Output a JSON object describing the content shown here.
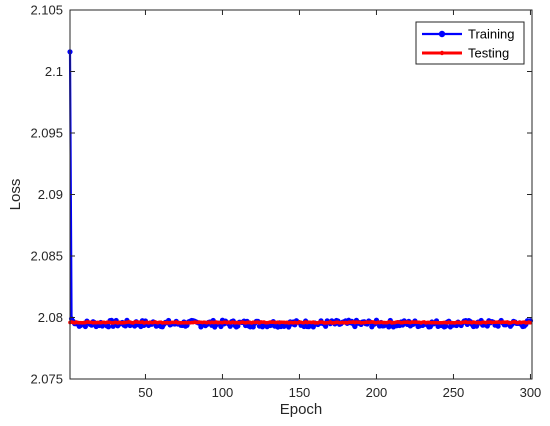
{
  "chart_data": {
    "type": "line",
    "title": "",
    "xlabel": "Epoch",
    "ylabel": "Loss",
    "xlim": [
      1,
      301
    ],
    "ylim": [
      2.075,
      2.105
    ],
    "xticks": [
      50,
      100,
      150,
      200,
      250,
      300
    ],
    "xtick_labels": [
      "50",
      "100",
      "150",
      "200",
      "250",
      "300"
    ],
    "yticks": [
      2.075,
      2.08,
      2.085,
      2.09,
      2.095,
      2.1,
      2.105
    ],
    "ytick_labels": [
      "2.075",
      "2.08",
      "2.085",
      "2.09",
      "2.095",
      "2.1",
      "2.105"
    ],
    "grid": false,
    "legend_position": "top-right",
    "series": [
      {
        "name": "Training",
        "color": "#0000ff",
        "marker": "circle",
        "head": [
          [
            1,
            2.1016
          ],
          [
            2,
            2.0799
          ],
          [
            3,
            2.0797
          ],
          [
            4,
            2.0795
          ]
        ],
        "tail_range": [
          2,
          300
        ],
        "tail_mean": 2.0795,
        "tail_noise": 0.00028
      },
      {
        "name": "Testing",
        "color": "#ff0000",
        "marker": "dot",
        "tail_range": [
          1,
          300
        ],
        "tail_mean": 2.0796,
        "tail_noise": 4e-05
      }
    ]
  }
}
